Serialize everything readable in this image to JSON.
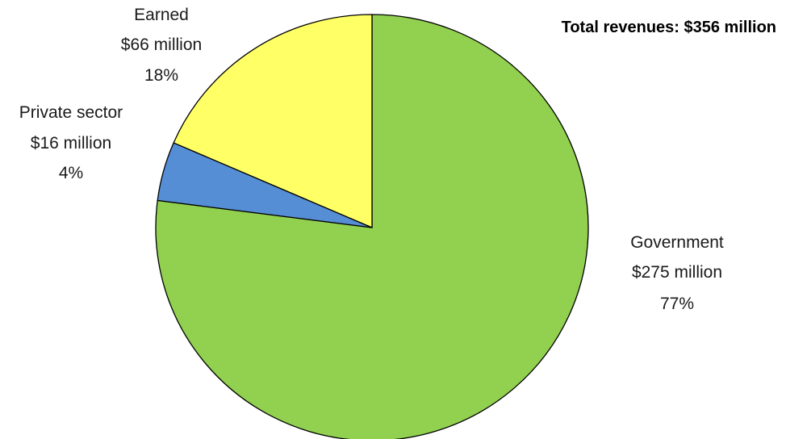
{
  "chart_data": {
    "type": "pie",
    "total_label": "Total revenues: $356 million",
    "slices": [
      {
        "name": "Government",
        "amount": "$275 million",
        "percent_label": "77%",
        "value": 275,
        "color": "#92d050"
      },
      {
        "name": "Private sector",
        "amount": "$16 million",
        "percent_label": "4%",
        "value": 16,
        "color": "#558ed5"
      },
      {
        "name": "Earned",
        "amount": "$66 million",
        "percent_label": "18%",
        "value": 66,
        "color": "#ffff66"
      }
    ],
    "start_angle": "12 o'clock",
    "direction": "clockwise",
    "slice_outline_color": "#000000"
  }
}
